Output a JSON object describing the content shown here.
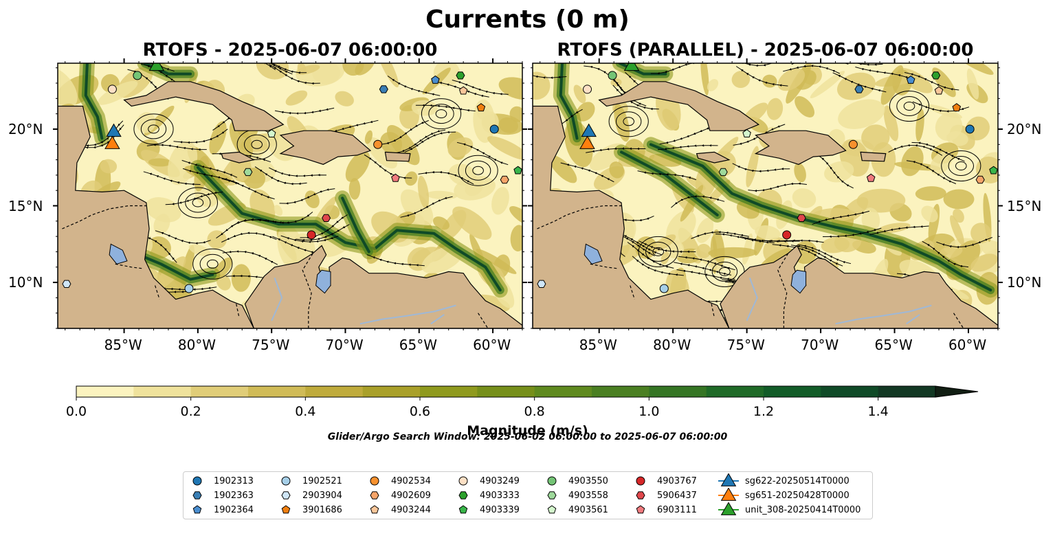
{
  "title": "Currents (0 m)",
  "maps": [
    {
      "id": "left",
      "title": "RTOFS - 2025-06-07 06:00:00"
    },
    {
      "id": "right",
      "title": "RTOFS (PARALLEL) - 2025-06-07 06:00:00"
    }
  ],
  "lon_ticks": [
    "85°W",
    "80°W",
    "75°W",
    "70°W",
    "65°W",
    "60°W"
  ],
  "lat_ticks": [
    "20°N",
    "15°N",
    "10°N"
  ],
  "colorbar": {
    "label": "Magnitude (m/s)",
    "ticks": [
      "0.0",
      "0.2",
      "0.4",
      "0.6",
      "0.8",
      "1.0",
      "1.2",
      "1.4"
    ],
    "colors": [
      "#fbf3bf",
      "#efe29c",
      "#e0cd78",
      "#d0bb57",
      "#bfab3c",
      "#a9a02a",
      "#8f9a1e",
      "#768f1a",
      "#5f8a1f",
      "#4a7f22",
      "#357524",
      "#1f6a27",
      "#125c28",
      "#0f4a27",
      "#123823",
      "#14291b",
      "#111e13"
    ],
    "extend": "max"
  },
  "search_window": "Glider/Argo Search Window: 2025-06-02 06:00:00 to 2025-06-07 06:00:00",
  "legend": [
    {
      "label": "1902313",
      "marker": "circle",
      "color": "#1f77b4"
    },
    {
      "label": "1902363",
      "marker": "hexagon",
      "color": "#3a7fb5"
    },
    {
      "label": "1902364",
      "marker": "pentagon",
      "color": "#4a8ed0"
    },
    {
      "label": "1902521",
      "marker": "circle",
      "color": "#a6cfe8"
    },
    {
      "label": "2903904",
      "marker": "hexagon",
      "color": "#cfe6f7"
    },
    {
      "label": "3901686",
      "marker": "pentagon",
      "color": "#f07f10"
    },
    {
      "label": "4902534",
      "marker": "circle",
      "color": "#f8912e"
    },
    {
      "label": "4902609",
      "marker": "hexagon",
      "color": "#f7a56a"
    },
    {
      "label": "4903244",
      "marker": "pentagon",
      "color": "#fbc79a"
    },
    {
      "label": "4903249",
      "marker": "circle",
      "color": "#fde0c5"
    },
    {
      "label": "4903333",
      "marker": "hexagon",
      "color": "#2ca02c"
    },
    {
      "label": "4903339",
      "marker": "pentagon",
      "color": "#39b54a"
    },
    {
      "label": "4903550",
      "marker": "circle",
      "color": "#74c476"
    },
    {
      "label": "4903558",
      "marker": "hexagon",
      "color": "#9ed99b"
    },
    {
      "label": "4903561",
      "marker": "pentagon",
      "color": "#d4f7cd"
    },
    {
      "label": "4903767",
      "marker": "circle",
      "color": "#d62728"
    },
    {
      "label": "5906437",
      "marker": "hexagon",
      "color": "#e0474c"
    },
    {
      "label": "6903111",
      "marker": "pentagon",
      "color": "#f07a7e"
    },
    {
      "label": "sg622-20250514T0000",
      "marker": "triangle",
      "color": "#1f77b4"
    },
    {
      "label": "sg651-20250428T0000",
      "marker": "triangle",
      "color": "#ff7f0e"
    },
    {
      "label": "unit_308-20250414T0000",
      "marker": "triangle",
      "color": "#2ca02c"
    }
  ],
  "map_extent": {
    "lon": [
      -89.5,
      -58
    ],
    "lat": [
      7,
      24.3
    ]
  },
  "land_color": "#d2b48c",
  "lake_color": "#8fb1dc",
  "floats": [
    {
      "id": "1902313",
      "lon": -59.9,
      "lat": 20.0
    },
    {
      "id": "1902363",
      "lon": -67.4,
      "lat": 22.6
    },
    {
      "id": "1902364",
      "lon": -63.9,
      "lat": 23.2
    },
    {
      "id": "1902521",
      "lon": -80.6,
      "lat": 9.6
    },
    {
      "id": "2903904",
      "lon": -88.9,
      "lat": 9.9
    },
    {
      "id": "3901686",
      "lon": -60.8,
      "lat": 21.4
    },
    {
      "id": "4902534",
      "lon": -67.8,
      "lat": 19.0
    },
    {
      "id": "4902609",
      "lon": -59.2,
      "lat": 16.7
    },
    {
      "id": "4903244",
      "lon": -62.0,
      "lat": 22.5
    },
    {
      "id": "4903249",
      "lon": -85.8,
      "lat": 22.6
    },
    {
      "id": "4903333",
      "lon": -62.2,
      "lat": 23.5
    },
    {
      "id": "4903339",
      "lon": -58.3,
      "lat": 17.3
    },
    {
      "id": "4903550",
      "lon": -84.1,
      "lat": 23.5
    },
    {
      "id": "4903558",
      "lon": -76.6,
      "lat": 17.2
    },
    {
      "id": "4903561",
      "lon": -75.0,
      "lat": 19.7
    },
    {
      "id": "4903767",
      "lon": -72.3,
      "lat": 13.1
    },
    {
      "id": "5906437",
      "lon": -71.3,
      "lat": 14.2
    },
    {
      "id": "6903111",
      "lon": -66.6,
      "lat": 16.8
    }
  ],
  "gliders": [
    {
      "id": "sg622-20250514T0000",
      "lon": -85.7,
      "lat": 19.9
    },
    {
      "id": "sg651-20250428T0000",
      "lon": -85.8,
      "lat": 19.1
    },
    {
      "id": "unit_308-20250414T0000",
      "lon": -82.8,
      "lat": 24.2
    }
  ]
}
